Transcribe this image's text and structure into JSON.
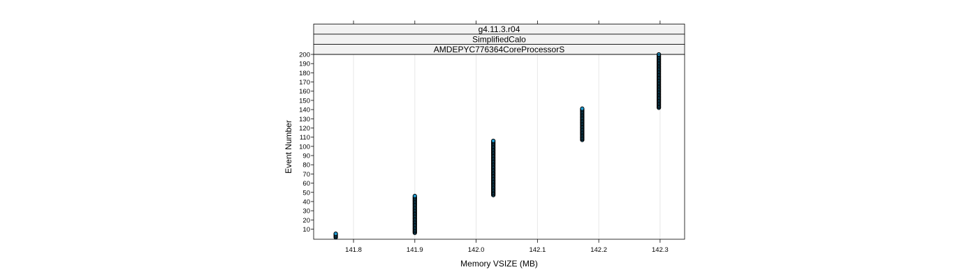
{
  "chart_data": {
    "type": "scatter",
    "panel": {
      "strips": [
        "g4.11.3.r04",
        "SimplifiedCalo",
        "AMDEPYC776364CoreProcessorS"
      ]
    },
    "xlabel": "Memory VSIZE (MB)",
    "ylabel": "Event Number",
    "xlim": [
      141.735,
      142.34
    ],
    "ylim": [
      -1,
      200
    ],
    "x_ticks": [
      "141.8",
      "141.9",
      "142.0",
      "142.1",
      "142.2",
      "142.3"
    ],
    "x_tick_values": [
      141.8,
      141.9,
      142.0,
      142.1,
      142.2,
      142.3
    ],
    "y_ticks": [
      10,
      20,
      30,
      40,
      50,
      60,
      70,
      80,
      90,
      100,
      110,
      120,
      130,
      140,
      150,
      160,
      170,
      180,
      190,
      200
    ],
    "grid": true,
    "series": [
      {
        "points": [
          {
            "x": 141.771,
            "y_from": 1,
            "y_to": 5
          },
          {
            "x": 141.9,
            "y_from": 6,
            "y_to": 46
          },
          {
            "x": 142.028,
            "y_from": 47,
            "y_to": 106
          },
          {
            "x": 142.173,
            "y_from": 107,
            "y_to": 141
          },
          {
            "x": 142.298,
            "y_from": 142,
            "y_to": 200
          }
        ]
      }
    ],
    "colors": {
      "point_fill": "#1f9bd1",
      "point_edge": "#000000",
      "strip_bg": "#f2f2f2",
      "grid": "#e6e6e6"
    }
  }
}
